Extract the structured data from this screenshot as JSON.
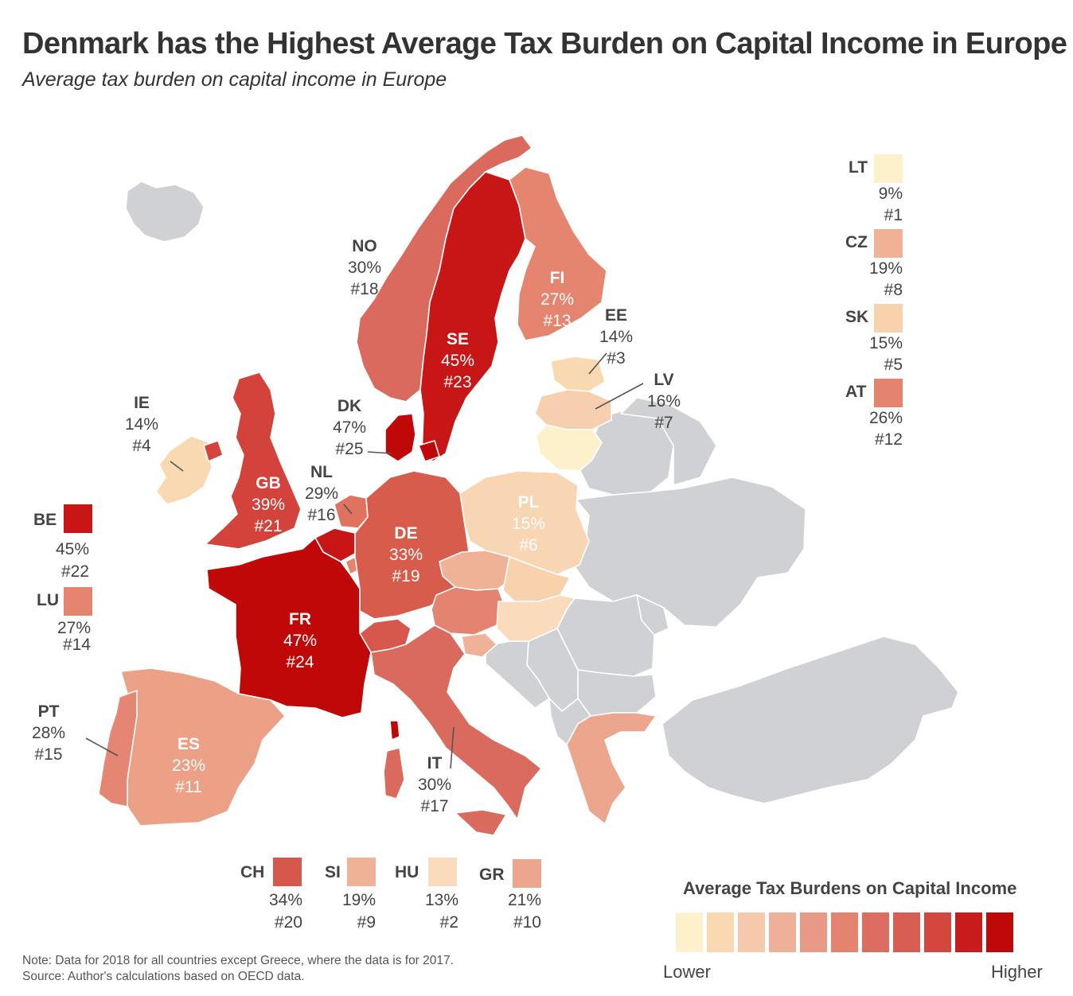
{
  "title": "Denmark has the Highest Average Tax Burden on Capital Income in Europe",
  "subtitle": "Average tax burden on capital income in Europe",
  "colors": {
    "no_data": "#d0d1d4",
    "border": "#ffffff",
    "scale": [
      "#fdf1cc",
      "#f9d9b2",
      "#f5c9aa",
      "#eeb097",
      "#e99a86",
      "#e4836f",
      "#dd6c61",
      "#d85e54",
      "#d4473f",
      "#c81c1c",
      "#c10808"
    ]
  },
  "countries": [
    {
      "code": "NO",
      "rate": "30%",
      "rank": "#18",
      "color": "#db6a5e"
    },
    {
      "code": "SE",
      "rate": "45%",
      "rank": "#23",
      "color": "#c81616"
    },
    {
      "code": "FI",
      "rate": "27%",
      "rank": "#13",
      "color": "#e58570"
    },
    {
      "code": "EE",
      "rate": "14%",
      "rank": "#3",
      "color": "#f9d9b2"
    },
    {
      "code": "LV",
      "rate": "16%",
      "rank": "#7",
      "color": "#f6cfae"
    },
    {
      "code": "IE",
      "rate": "14%",
      "rank": "#4",
      "color": "#f9d9b2"
    },
    {
      "code": "DK",
      "rate": "47%",
      "rank": "#25",
      "color": "#c00808"
    },
    {
      "code": "GB",
      "rate": "39%",
      "rank": "#21",
      "color": "#d4433b"
    },
    {
      "code": "NL",
      "rate": "29%",
      "rank": "#16",
      "color": "#e0735f"
    },
    {
      "code": "PL",
      "rate": "15%",
      "rank": "#6",
      "color": "#f8d5b3"
    },
    {
      "code": "DE",
      "rate": "33%",
      "rank": "#19",
      "color": "#d75c4c"
    },
    {
      "code": "FR",
      "rate": "47%",
      "rank": "#24",
      "color": "#c00808"
    },
    {
      "code": "ES",
      "rate": "23%",
      "rank": "#11",
      "color": "#eca085"
    },
    {
      "code": "PT",
      "rate": "28%",
      "rank": "#15",
      "color": "#e58573"
    },
    {
      "code": "IT",
      "rate": "30%",
      "rank": "#17",
      "color": "#db6a5e"
    }
  ],
  "inset_countries": [
    {
      "code": "LT",
      "rate": "9%",
      "rank": "#1",
      "color": "#fdf1cc"
    },
    {
      "code": "CZ",
      "rate": "19%",
      "rank": "#8",
      "color": "#efb296"
    },
    {
      "code": "SK",
      "rate": "15%",
      "rank": "#5",
      "color": "#f8d1ad"
    },
    {
      "code": "AT",
      "rate": "26%",
      "rank": "#12",
      "color": "#e48370"
    },
    {
      "code": "BE",
      "rate": "45%",
      "rank": "#22",
      "color": "#c81616"
    },
    {
      "code": "LU",
      "rate": "27%",
      "rank": "#14",
      "color": "#e58570"
    },
    {
      "code": "CH",
      "rate": "34%",
      "rank": "#20",
      "color": "#d6584c"
    },
    {
      "code": "SI",
      "rate": "19%",
      "rank": "#9",
      "color": "#efb296"
    },
    {
      "code": "HU",
      "rate": "13%",
      "rank": "#2",
      "color": "#fadcbd"
    },
    {
      "code": "GR",
      "rate": "21%",
      "rank": "#10",
      "color": "#eda68e"
    }
  ],
  "legend": {
    "title": "Average Tax Burdens on Capital Income",
    "low_label": "Lower",
    "high_label": "Higher"
  },
  "note": "Note: Data for 2018 for all countries except Greece, where the data is for 2017.",
  "source": "Source: Author's calculations based on OECD data."
}
